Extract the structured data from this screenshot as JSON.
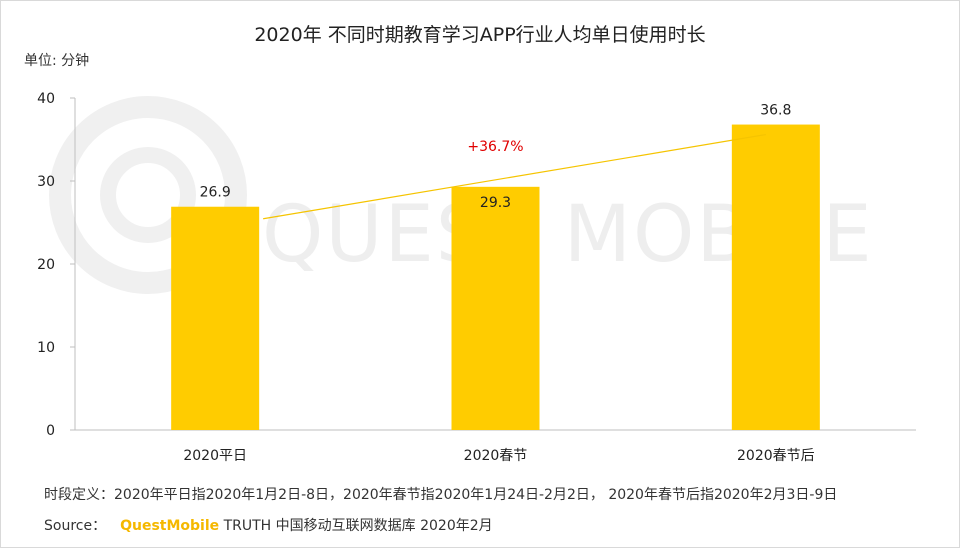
{
  "title": "2020年 不同时期教育学习APP行业人均单日使用时长",
  "unit_label": "单位: 分钟",
  "watermark_text": "QUEST MOBILE",
  "footnote": "时段定义：2020年平日指2020年1月2日-8日，2020年春节指2020年1月24日-2月2日，  2020年春节后指2020年2月3日-9日",
  "source": {
    "label": "Source：",
    "brand": "QuestMobile",
    "rest": " TRUTH 中国移动互联网数据库 2020年2月"
  },
  "colors": {
    "bar": "#FFCC00",
    "trend": "#F5C400",
    "growth": "#E00000",
    "axis": "#BFBFBF"
  },
  "chart_data": {
    "type": "bar",
    "categories": [
      "2020平日",
      "2020春节",
      "2020春节后"
    ],
    "values": [
      26.9,
      29.3,
      36.8
    ],
    "data_labels": [
      "26.9",
      "29.3",
      "36.8"
    ],
    "ylim": [
      0,
      40
    ],
    "yticks": [
      0,
      10,
      20,
      30,
      40
    ],
    "ylabel": "分钟",
    "trend_annotation": "+36.7%"
  }
}
